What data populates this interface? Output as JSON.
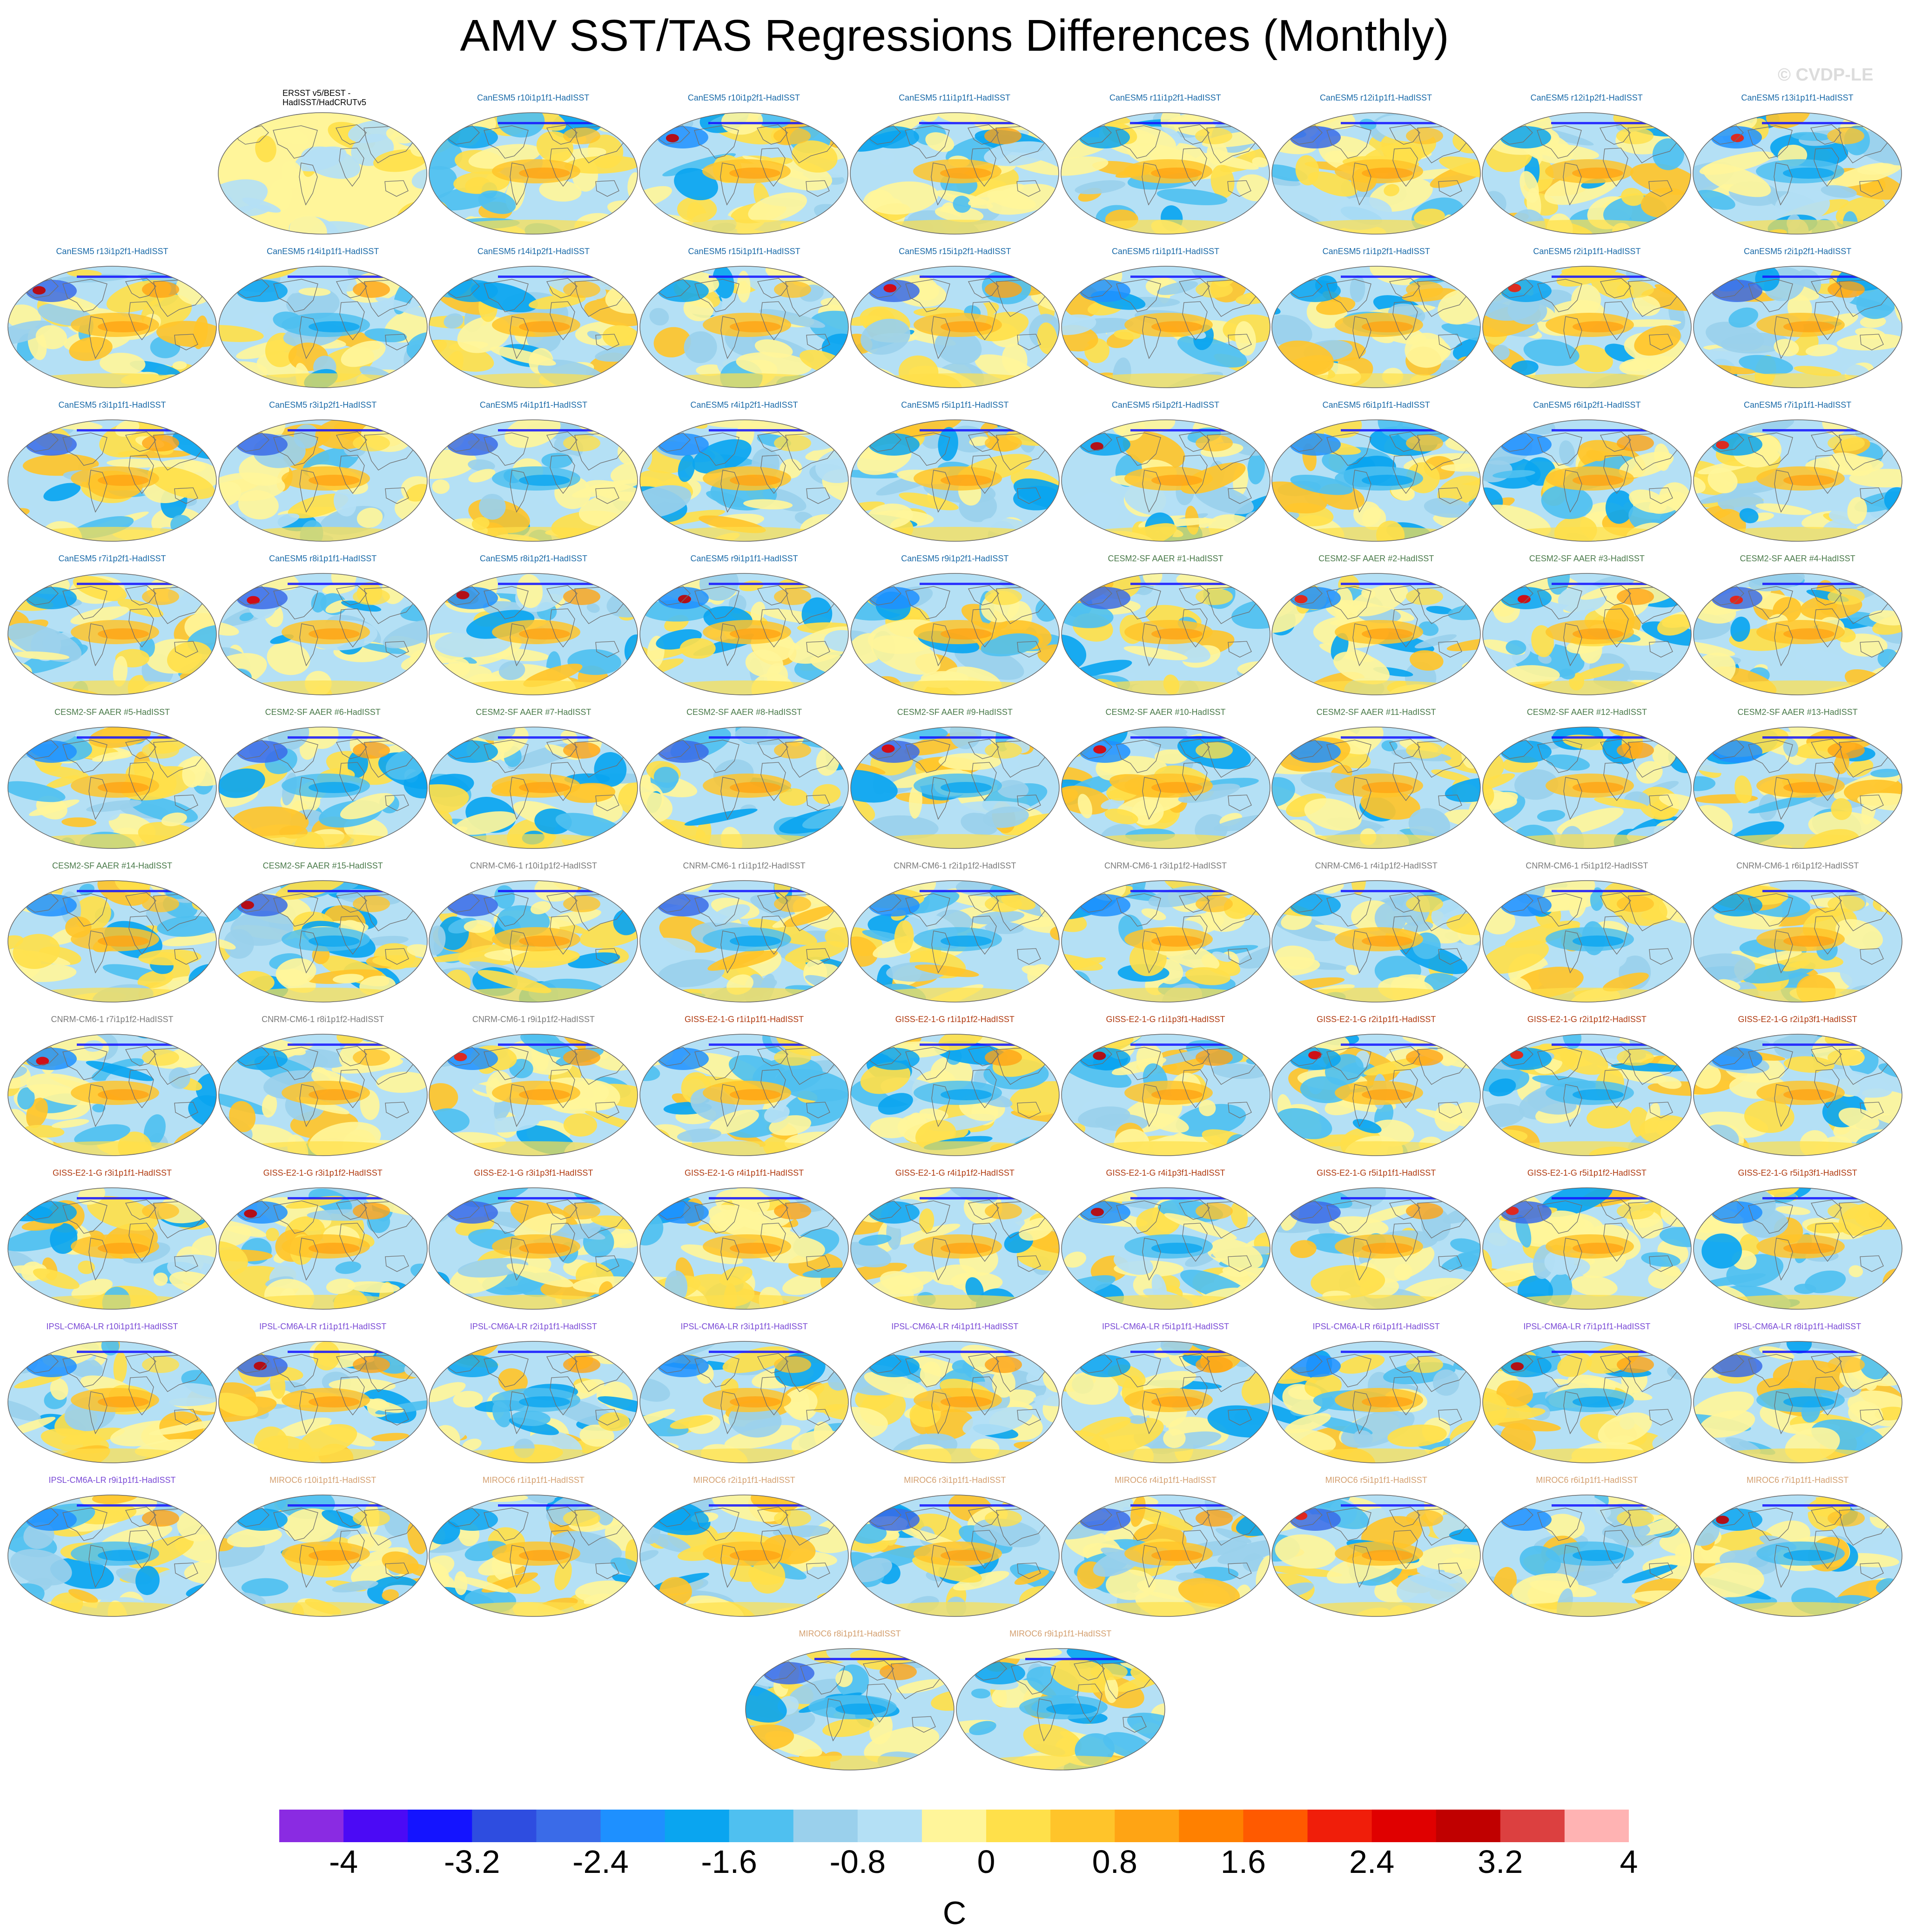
{
  "title": "AMV SST/TAS Regressions Differences (Monthly)",
  "watermark": "© CVDP-LE",
  "chart_data": {
    "type": "heatmap",
    "projection": "Robinson",
    "units": "C",
    "colorbar": {
      "tick_labels": [
        "-4",
        "-3.2",
        "-2.4",
        "-1.6",
        "-0.8",
        "0",
        "0.8",
        "1.6",
        "2.4",
        "3.2",
        "4"
      ],
      "colors": [
        "#8a2be2",
        "#4b0af5",
        "#1414ff",
        "#2e4de0",
        "#3a6be8",
        "#1e90ff",
        "#0aa5f0",
        "#4fc0f0",
        "#9ad0ec",
        "#b4e0f5",
        "#fff59a",
        "#ffe04a",
        "#ffc42a",
        "#ffa414",
        "#ff8000",
        "#ff5a00",
        "#f01e0a",
        "#e00000",
        "#c00000",
        "#dc4040",
        "#ffb3b3"
      ]
    },
    "group_colors": {
      "obs": "#000000",
      "CanESM5": "#1a6aa8",
      "CESM2-SF AAER": "#4a7a4a",
      "CNRM-CM6-1": "#7a7a7a",
      "GISS-E2-1-G": "#b03a10",
      "IPSL-CM6A-LR": "#7a4ad6",
      "MIROC6": "#d4a070"
    },
    "panels": [
      {
        "label": "ERSST v5/BEST -\nHadISST/HadCRUTv5",
        "group": "obs"
      },
      {
        "label": "CanESM5 r10i1p1f1-HadISST",
        "group": "CanESM5"
      },
      {
        "label": "CanESM5 r10i1p2f1-HadISST",
        "group": "CanESM5"
      },
      {
        "label": "CanESM5 r11i1p1f1-HadISST",
        "group": "CanESM5"
      },
      {
        "label": "CanESM5 r11i1p2f1-HadISST",
        "group": "CanESM5"
      },
      {
        "label": "CanESM5 r12i1p1f1-HadISST",
        "group": "CanESM5"
      },
      {
        "label": "CanESM5 r12i1p2f1-HadISST",
        "group": "CanESM5"
      },
      {
        "label": "CanESM5 r13i1p1f1-HadISST",
        "group": "CanESM5"
      },
      {
        "label": "CanESM5 r13i1p2f1-HadISST",
        "group": "CanESM5"
      },
      {
        "label": "CanESM5 r14i1p1f1-HadISST",
        "group": "CanESM5"
      },
      {
        "label": "CanESM5 r14i1p2f1-HadISST",
        "group": "CanESM5"
      },
      {
        "label": "CanESM5 r15i1p1f1-HadISST",
        "group": "CanESM5"
      },
      {
        "label": "CanESM5 r15i1p2f1-HadISST",
        "group": "CanESM5"
      },
      {
        "label": "CanESM5 r1i1p1f1-HadISST",
        "group": "CanESM5"
      },
      {
        "label": "CanESM5 r1i1p2f1-HadISST",
        "group": "CanESM5"
      },
      {
        "label": "CanESM5 r2i1p1f1-HadISST",
        "group": "CanESM5"
      },
      {
        "label": "CanESM5 r2i1p2f1-HadISST",
        "group": "CanESM5"
      },
      {
        "label": "CanESM5 r3i1p1f1-HadISST",
        "group": "CanESM5"
      },
      {
        "label": "CanESM5 r3i1p2f1-HadISST",
        "group": "CanESM5"
      },
      {
        "label": "CanESM5 r4i1p1f1-HadISST",
        "group": "CanESM5"
      },
      {
        "label": "CanESM5 r4i1p2f1-HadISST",
        "group": "CanESM5"
      },
      {
        "label": "CanESM5 r5i1p1f1-HadISST",
        "group": "CanESM5"
      },
      {
        "label": "CanESM5 r5i1p2f1-HadISST",
        "group": "CanESM5"
      },
      {
        "label": "CanESM5 r6i1p1f1-HadISST",
        "group": "CanESM5"
      },
      {
        "label": "CanESM5 r6i1p2f1-HadISST",
        "group": "CanESM5"
      },
      {
        "label": "CanESM5 r7i1p1f1-HadISST",
        "group": "CanESM5"
      },
      {
        "label": "CanESM5 r7i1p2f1-HadISST",
        "group": "CanESM5"
      },
      {
        "label": "CanESM5 r8i1p1f1-HadISST",
        "group": "CanESM5"
      },
      {
        "label": "CanESM5 r8i1p2f1-HadISST",
        "group": "CanESM5"
      },
      {
        "label": "CanESM5 r9i1p1f1-HadISST",
        "group": "CanESM5"
      },
      {
        "label": "CanESM5 r9i1p2f1-HadISST",
        "group": "CanESM5"
      },
      {
        "label": "CESM2-SF AAER #1-HadISST",
        "group": "CESM2-SF AAER"
      },
      {
        "label": "CESM2-SF AAER #2-HadISST",
        "group": "CESM2-SF AAER"
      },
      {
        "label": "CESM2-SF AAER #3-HadISST",
        "group": "CESM2-SF AAER"
      },
      {
        "label": "CESM2-SF AAER #4-HadISST",
        "group": "CESM2-SF AAER"
      },
      {
        "label": "CESM2-SF AAER #5-HadISST",
        "group": "CESM2-SF AAER"
      },
      {
        "label": "CESM2-SF AAER #6-HadISST",
        "group": "CESM2-SF AAER"
      },
      {
        "label": "CESM2-SF AAER #7-HadISST",
        "group": "CESM2-SF AAER"
      },
      {
        "label": "CESM2-SF AAER #8-HadISST",
        "group": "CESM2-SF AAER"
      },
      {
        "label": "CESM2-SF AAER #9-HadISST",
        "group": "CESM2-SF AAER"
      },
      {
        "label": "CESM2-SF AAER #10-HadISST",
        "group": "CESM2-SF AAER"
      },
      {
        "label": "CESM2-SF AAER #11-HadISST",
        "group": "CESM2-SF AAER"
      },
      {
        "label": "CESM2-SF AAER #12-HadISST",
        "group": "CESM2-SF AAER"
      },
      {
        "label": "CESM2-SF AAER #13-HadISST",
        "group": "CESM2-SF AAER"
      },
      {
        "label": "CESM2-SF AAER #14-HadISST",
        "group": "CESM2-SF AAER"
      },
      {
        "label": "CESM2-SF AAER #15-HadISST",
        "group": "CESM2-SF AAER"
      },
      {
        "label": "CNRM-CM6-1 r10i1p1f2-HadISST",
        "group": "CNRM-CM6-1"
      },
      {
        "label": "CNRM-CM6-1 r1i1p1f2-HadISST",
        "group": "CNRM-CM6-1"
      },
      {
        "label": "CNRM-CM6-1 r2i1p1f2-HadISST",
        "group": "CNRM-CM6-1"
      },
      {
        "label": "CNRM-CM6-1 r3i1p1f2-HadISST",
        "group": "CNRM-CM6-1"
      },
      {
        "label": "CNRM-CM6-1 r4i1p1f2-HadISST",
        "group": "CNRM-CM6-1"
      },
      {
        "label": "CNRM-CM6-1 r5i1p1f2-HadISST",
        "group": "CNRM-CM6-1"
      },
      {
        "label": "CNRM-CM6-1 r6i1p1f2-HadISST",
        "group": "CNRM-CM6-1"
      },
      {
        "label": "CNRM-CM6-1 r7i1p1f2-HadISST",
        "group": "CNRM-CM6-1"
      },
      {
        "label": "CNRM-CM6-1 r8i1p1f2-HadISST",
        "group": "CNRM-CM6-1"
      },
      {
        "label": "CNRM-CM6-1 r9i1p1f2-HadISST",
        "group": "CNRM-CM6-1"
      },
      {
        "label": "GISS-E2-1-G r1i1p1f1-HadISST",
        "group": "GISS-E2-1-G"
      },
      {
        "label": "GISS-E2-1-G r1i1p1f2-HadISST",
        "group": "GISS-E2-1-G"
      },
      {
        "label": "GISS-E2-1-G r1i1p3f1-HadISST",
        "group": "GISS-E2-1-G"
      },
      {
        "label": "GISS-E2-1-G r2i1p1f1-HadISST",
        "group": "GISS-E2-1-G"
      },
      {
        "label": "GISS-E2-1-G r2i1p1f2-HadISST",
        "group": "GISS-E2-1-G"
      },
      {
        "label": "GISS-E2-1-G r2i1p3f1-HadISST",
        "group": "GISS-E2-1-G"
      },
      {
        "label": "GISS-E2-1-G r3i1p1f1-HadISST",
        "group": "GISS-E2-1-G"
      },
      {
        "label": "GISS-E2-1-G r3i1p1f2-HadISST",
        "group": "GISS-E2-1-G"
      },
      {
        "label": "GISS-E2-1-G r3i1p3f1-HadISST",
        "group": "GISS-E2-1-G"
      },
      {
        "label": "GISS-E2-1-G r4i1p1f1-HadISST",
        "group": "GISS-E2-1-G"
      },
      {
        "label": "GISS-E2-1-G r4i1p1f2-HadISST",
        "group": "GISS-E2-1-G"
      },
      {
        "label": "GISS-E2-1-G r4i1p3f1-HadISST",
        "group": "GISS-E2-1-G"
      },
      {
        "label": "GISS-E2-1-G r5i1p1f1-HadISST",
        "group": "GISS-E2-1-G"
      },
      {
        "label": "GISS-E2-1-G r5i1p1f2-HadISST",
        "group": "GISS-E2-1-G"
      },
      {
        "label": "GISS-E2-1-G r5i1p3f1-HadISST",
        "group": "GISS-E2-1-G"
      },
      {
        "label": "IPSL-CM6A-LR r10i1p1f1-HadISST",
        "group": "IPSL-CM6A-LR"
      },
      {
        "label": "IPSL-CM6A-LR r1i1p1f1-HadISST",
        "group": "IPSL-CM6A-LR"
      },
      {
        "label": "IPSL-CM6A-LR r2i1p1f1-HadISST",
        "group": "IPSL-CM6A-LR"
      },
      {
        "label": "IPSL-CM6A-LR r3i1p1f1-HadISST",
        "group": "IPSL-CM6A-LR"
      },
      {
        "label": "IPSL-CM6A-LR r4i1p1f1-HadISST",
        "group": "IPSL-CM6A-LR"
      },
      {
        "label": "IPSL-CM6A-LR r5i1p1f1-HadISST",
        "group": "IPSL-CM6A-LR"
      },
      {
        "label": "IPSL-CM6A-LR r6i1p1f1-HadISST",
        "group": "IPSL-CM6A-LR"
      },
      {
        "label": "IPSL-CM6A-LR r7i1p1f1-HadISST",
        "group": "IPSL-CM6A-LR"
      },
      {
        "label": "IPSL-CM6A-LR r8i1p1f1-HadISST",
        "group": "IPSL-CM6A-LR"
      },
      {
        "label": "IPSL-CM6A-LR r9i1p1f1-HadISST",
        "group": "IPSL-CM6A-LR"
      },
      {
        "label": "MIROC6 r10i1p1f1-HadISST",
        "group": "MIROC6"
      },
      {
        "label": "MIROC6 r1i1p1f1-HadISST",
        "group": "MIROC6"
      },
      {
        "label": "MIROC6 r2i1p1f1-HadISST",
        "group": "MIROC6"
      },
      {
        "label": "MIROC6 r3i1p1f1-HadISST",
        "group": "MIROC6"
      },
      {
        "label": "MIROC6 r4i1p1f1-HadISST",
        "group": "MIROC6"
      },
      {
        "label": "MIROC6 r5i1p1f1-HadISST",
        "group": "MIROC6"
      },
      {
        "label": "MIROC6 r6i1p1f1-HadISST",
        "group": "MIROC6"
      },
      {
        "label": "MIROC6 r7i1p1f1-HadISST",
        "group": "MIROC6"
      },
      {
        "label": "MIROC6 r8i1p1f1-HadISST",
        "group": "MIROC6"
      },
      {
        "label": "MIROC6 r9i1p1f1-HadISST",
        "group": "MIROC6"
      }
    ]
  }
}
